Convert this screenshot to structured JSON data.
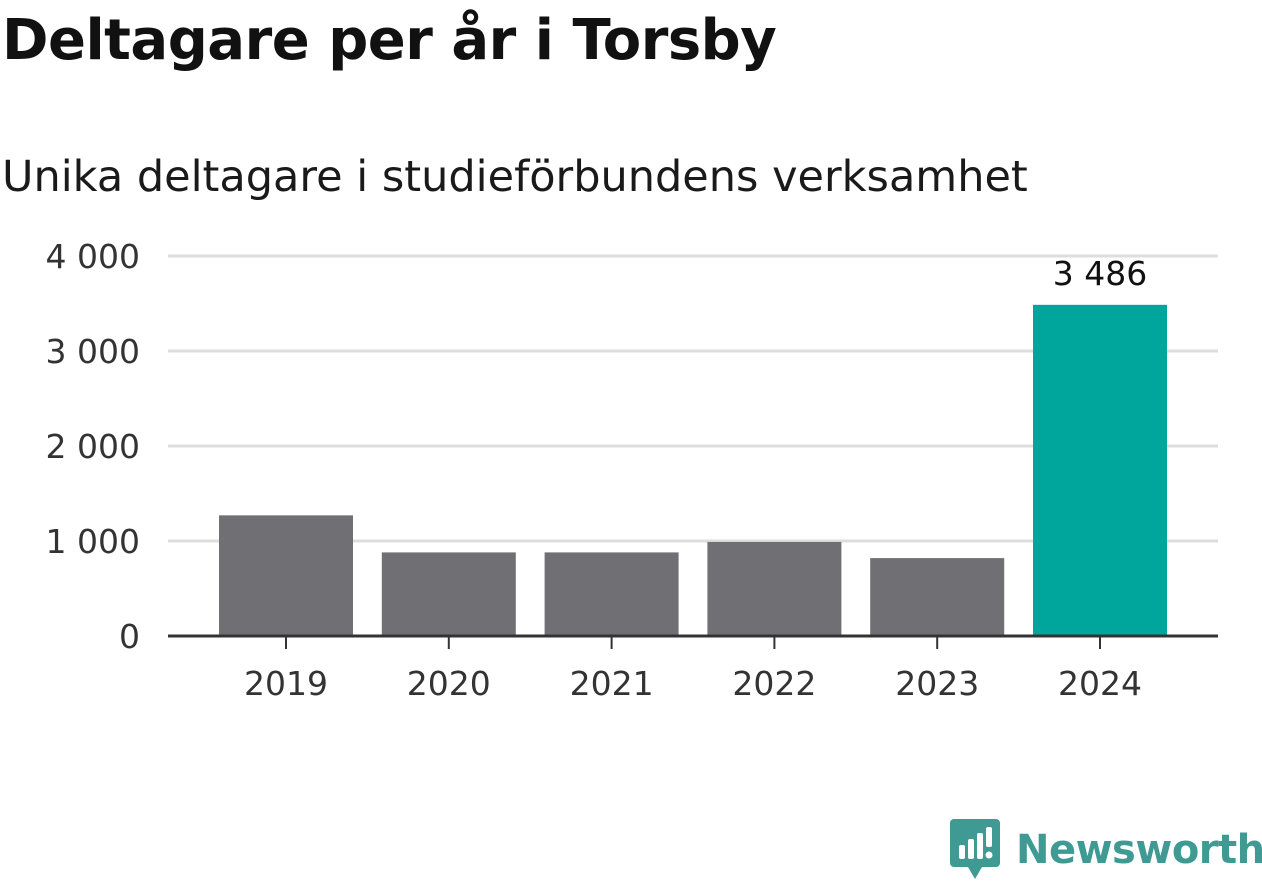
{
  "chart_data": {
    "type": "bar",
    "title": "Deltagare per år i Torsby",
    "subtitle": "Unika deltagare i studieförbundens verksamhet",
    "categories": [
      "2019",
      "2020",
      "2021",
      "2022",
      "2023",
      "2024"
    ],
    "values": [
      1270,
      880,
      880,
      990,
      820,
      3486
    ],
    "data_labels": [
      null,
      null,
      null,
      null,
      null,
      "3 486"
    ],
    "yticks": [
      0,
      1000,
      2000,
      3000,
      4000
    ],
    "ytick_labels": [
      "0",
      "1 000",
      "2 000",
      "3 000",
      "4 000"
    ],
    "ylim": [
      0,
      4000
    ],
    "grid": true,
    "legend": "none",
    "colors": {
      "bar": "#706f74",
      "highlight": "#00a59b",
      "grid": "#dddddd",
      "axis": "#333333"
    },
    "highlight_index": 5
  },
  "brand": {
    "name": "Newsworthy",
    "color": "#3f9a94",
    "icon": "newsworthy-logo-icon"
  }
}
